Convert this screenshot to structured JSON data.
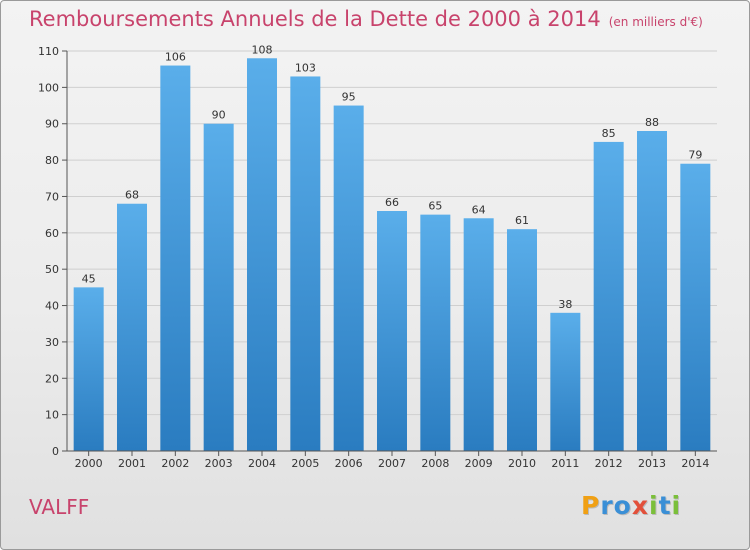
{
  "title": "Remboursements Annuels de la Dette de 2000 à 2014",
  "unit": "(en milliers d'€)",
  "commune": "VALFF",
  "logo": {
    "letters": [
      {
        "char": "P",
        "color": "#f0a014"
      },
      {
        "char": "r",
        "color": "#3a8fd6"
      },
      {
        "char": "o",
        "color": "#3a8fd6"
      },
      {
        "char": "x",
        "color": "#e2503a"
      },
      {
        "char": "i",
        "color": "#7bbf3a"
      },
      {
        "char": "t",
        "color": "#3a8fd6"
      },
      {
        "char": "i",
        "color": "#7bbf3a"
      }
    ]
  },
  "colors": {
    "bar_top": "#5aaeea",
    "bar_bottom": "#2a7cc0",
    "title": "#c8436c",
    "grid": "#cfcfcf",
    "axis": "#555555"
  },
  "chart_data": {
    "type": "bar",
    "categories": [
      "2000",
      "2001",
      "2002",
      "2003",
      "2004",
      "2005",
      "2006",
      "2007",
      "2008",
      "2009",
      "2010",
      "2011",
      "2012",
      "2013",
      "2014"
    ],
    "values": [
      45,
      68,
      106,
      90,
      108,
      103,
      95,
      66,
      65,
      64,
      61,
      38,
      85,
      88,
      79
    ],
    "ylim": [
      0,
      110
    ],
    "yticks": [
      0,
      10,
      20,
      30,
      40,
      50,
      60,
      70,
      80,
      90,
      100,
      110
    ],
    "grid": true,
    "legend": "none"
  }
}
